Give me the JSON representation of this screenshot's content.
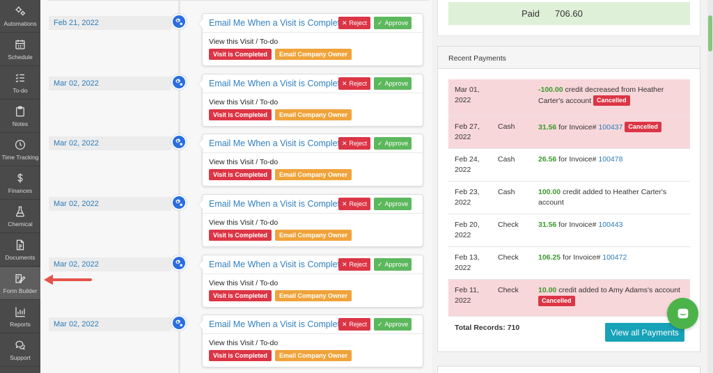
{
  "sidebar": {
    "items": [
      {
        "label": "Automations",
        "icon": "gears-icon"
      },
      {
        "label": "Schedule",
        "icon": "calendar-icon"
      },
      {
        "label": "To-do",
        "icon": "checklist-icon"
      },
      {
        "label": "Notes",
        "icon": "clipboard-icon"
      },
      {
        "label": "Time Tracking",
        "icon": "clock-icon"
      },
      {
        "label": "Finances",
        "icon": "dollar-icon"
      },
      {
        "label": "Chemical",
        "icon": "flask-icon"
      },
      {
        "label": "Documents",
        "icon": "document-icon"
      },
      {
        "label": "Form Builder",
        "icon": "form-edit-icon"
      },
      {
        "label": "Reports",
        "icon": "bar-chart-icon"
      },
      {
        "label": "Support",
        "icon": "chat-icon"
      }
    ]
  },
  "timeline": {
    "entries": [
      {
        "date": "Feb 21, 2022",
        "title": "Email Me When a Visit is Complete",
        "reject_label": "Reject",
        "approve_label": "Approve",
        "link": "View this Visit / To-do",
        "tag1": "Visit is Completed",
        "tag2": "Email Company Owner"
      },
      {
        "date": "Mar 02, 2022",
        "title": "Email Me When a Visit is Complete",
        "reject_label": "Reject",
        "approve_label": "Approve",
        "link": "View this Visit / To-do",
        "tag1": "Visit is Completed",
        "tag2": "Email Company Owner"
      },
      {
        "date": "Mar 02, 2022",
        "title": "Email Me When a Visit is Complete",
        "reject_label": "Reject",
        "approve_label": "Approve",
        "link": "View this Visit / To-do",
        "tag1": "Visit is Completed",
        "tag2": "Email Company Owner"
      },
      {
        "date": "Mar 02, 2022",
        "title": "Email Me When a Visit is Complete",
        "reject_label": "Reject",
        "approve_label": "Approve",
        "link": "View this Visit / To-do",
        "tag1": "Visit is Completed",
        "tag2": "Email Company Owner"
      },
      {
        "date": "Mar 02, 2022",
        "title": "Email Me When a Visit is Complete",
        "reject_label": "Reject",
        "approve_label": "Approve",
        "link": "View this Visit / To-do",
        "tag1": "Visit is Completed",
        "tag2": "Email Company Owner"
      },
      {
        "date": "Mar 02, 2022",
        "title": "Email Me When a Visit is Complete",
        "reject_label": "Reject",
        "approve_label": "Approve",
        "link": "View this Visit / To-do",
        "tag1": "Visit is Completed",
        "tag2": "Email Company Owner"
      }
    ]
  },
  "paid": {
    "label": "Paid",
    "value": "706.60"
  },
  "payments": {
    "title": "Recent Payments",
    "rows": [
      {
        "date": "Mar 01, 2022",
        "method": "",
        "amount": "-100.00",
        "text": " credit decreased from Heather Carter's account",
        "invoice": "",
        "cancelled": true
      },
      {
        "date": "Feb 27, 2022",
        "method": "Cash",
        "amount": "31.56",
        "text": " for Invoice# ",
        "invoice": "100437",
        "cancelled": true
      },
      {
        "date": "Feb 24, 2022",
        "method": "Cash",
        "amount": "26.56",
        "text": " for Invoice# ",
        "invoice": "100478",
        "cancelled": false
      },
      {
        "date": "Feb 23, 2022",
        "method": "Cash",
        "amount": "100.00",
        "text": " credit added to Heather Carter's account",
        "invoice": "",
        "cancelled": false
      },
      {
        "date": "Feb 20, 2022",
        "method": "Check",
        "amount": "31.56",
        "text": " for Invoice# ",
        "invoice": "100443",
        "cancelled": false
      },
      {
        "date": "Feb 13, 2022",
        "method": "Check",
        "amount": "106.25",
        "text": " for Invoice# ",
        "invoice": "100472",
        "cancelled": false
      },
      {
        "date": "Feb 11, 2022",
        "method": "Check",
        "amount": "10.00",
        "text": " credit added to Amy Adams's account",
        "invoice": "",
        "cancelled": true
      }
    ],
    "cancelled_label": "Cancelled",
    "total_label": "Total Records: 710",
    "view_all_label": "View all Payments"
  },
  "colors": {
    "sidebar_bg": "#4a4a4a",
    "link_blue": "#2f7fc0",
    "reject_red": "#dc3545",
    "approve_green": "#5cb85c",
    "tag_orange": "#f0a33a",
    "cancelled_row_pink": "#f8d7da",
    "paid_green_bg": "#dff0d8",
    "view_button_teal": "#17a2b8",
    "chat_green": "#4cb34a",
    "annotation_arrow": "#e5534b"
  }
}
